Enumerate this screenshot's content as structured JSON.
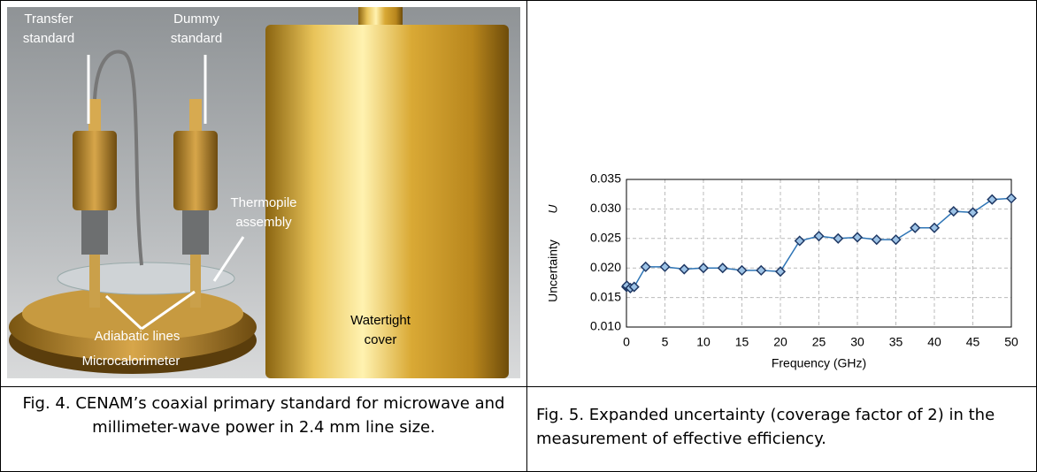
{
  "photo": {
    "labels": [
      {
        "lines": [
          "Transfer",
          "standard"
        ]
      },
      {
        "lines": [
          "Dummy",
          "standard"
        ]
      },
      {
        "lines": [
          "Thermopile",
          "assembly"
        ]
      },
      {
        "lines": [
          "Adiabatic lines"
        ]
      },
      {
        "lines": [
          "Microcalorimeter"
        ]
      },
      {
        "lines": [
          "Watertight",
          "cover"
        ]
      }
    ]
  },
  "captions": [
    "Fig. 4.  CENAM’s coaxial primary standard for microwave and millimeter-wave power in 2.4 mm line size.",
    "Fig. 5.  Expanded uncertainty (coverage factor of 2) in the measurement of effective efficiency."
  ],
  "chart_data": {
    "type": "line",
    "xlabel": "Frequency  (GHz)",
    "ylabel": "Uncertainty",
    "ylabel_symbol": "U",
    "x": [
      0.01,
      0.05,
      0.5,
      1,
      2.5,
      5,
      7.5,
      10,
      12.5,
      15,
      17.5,
      20,
      22.5,
      25,
      27.5,
      30,
      32.5,
      35,
      37.5,
      40,
      42.5,
      45,
      47.5,
      50
    ],
    "series": [
      {
        "color": "#2e75b6",
        "values": [
          0.0168,
          0.017,
          0.0166,
          0.0168,
          0.0202,
          0.0202,
          0.0198,
          0.02,
          0.02,
          0.0196,
          0.0196,
          0.0194,
          0.0246,
          0.0254,
          0.025,
          0.0252,
          0.0248,
          0.0248,
          0.0268,
          0.0268,
          0.0296,
          0.0294,
          0.0316,
          0.0318
        ]
      }
    ],
    "xlim": [
      0,
      50
    ],
    "ylim": [
      0.01,
      0.035
    ],
    "xticks": [
      0,
      5,
      10,
      15,
      20,
      25,
      30,
      35,
      40,
      45,
      50
    ],
    "yticks": [
      {
        "value": 0.01,
        "label": "0.010"
      },
      {
        "value": 0.015,
        "label": "0.015"
      },
      {
        "value": 0.02,
        "label": "0.020"
      },
      {
        "value": 0.025,
        "label": "0.025"
      },
      {
        "value": 0.03,
        "label": "0.030"
      },
      {
        "value": 0.035,
        "label": "0.035"
      }
    ],
    "grid": true
  }
}
